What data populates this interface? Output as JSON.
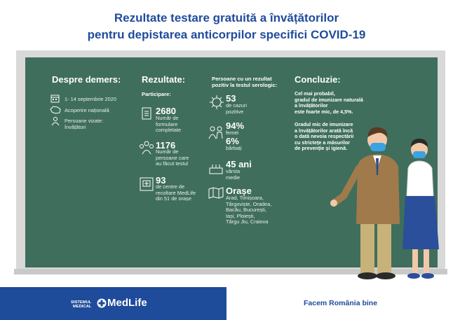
{
  "title": {
    "line1": "Rezultate testare gratuită a învățătorilor",
    "line2": "pentru depistarea anticorpilor specifici COVID-19"
  },
  "col1": {
    "heading": "Despre demers:",
    "date": "1- 14 septembrie 2020",
    "coverage": "Acoperire națională",
    "persons_l1": "Persoane vizate:",
    "persons_l2": "învățători"
  },
  "col2": {
    "heading": "Rezultate:",
    "participation": "Participare:",
    "n1": "2680",
    "d1_l1": "Număr de",
    "d1_l2": "formulare",
    "d1_l3": "completate",
    "n2": "1176",
    "d2_l1": "Număr de",
    "d2_l2": "persoane care",
    "d2_l3": "au făcut testul",
    "n3": "93",
    "d3_l1": "de centre de",
    "d3_l2": "recoltare MedLife",
    "d3_l3": "din 51 de orașe"
  },
  "col3": {
    "heading_l1": "Persoane cu un rezultat",
    "heading_l2": "pozitiv la testul serologic:",
    "cases_n": "53",
    "cases_l1": "de cazuri",
    "cases_l2": "pozitive",
    "women_n": "94%",
    "women_l": "femei",
    "men_n": "6%",
    "men_l": "bărbați",
    "age_n": "45 ani",
    "age_l1": "vârsta",
    "age_l2": "medie",
    "cities_heading": "Orașe",
    "cities_l1": "Arad, Timișoara,",
    "cities_l2": "Târgoviște, Oradea,",
    "cities_l3": "Bacău, București,",
    "cities_l4": "Iași, Ploiești,",
    "cities_l5": "Târgu Jiu, Craiova"
  },
  "col4": {
    "heading": "Concluzie:",
    "p1_l1": "Cel mai probabil,",
    "p1_l2": "gradul de imunizare naturală",
    "p1_l3": "a învățătorilor",
    "p1_l4": "este foarte mic, de 4,5%.",
    "p2_l1": "Gradul mic de imunizare",
    "p2_l2": "a învățătorilor arată încă",
    "p2_l3": "o dată nevoia respectării",
    "p2_l4": "cu strictețe a măsurilor",
    "p2_l5": "de prevenție și igienă."
  },
  "footer": {
    "brand_small_l1": "SISTEMUL",
    "brand_small_l2": "MEDICAL",
    "brand": "MedLife",
    "slogan": "Facem România bine"
  },
  "colors": {
    "title_blue": "#1f4b9b",
    "board_green": "#3f6e5c",
    "footer_blue": "#1f4b9b"
  }
}
